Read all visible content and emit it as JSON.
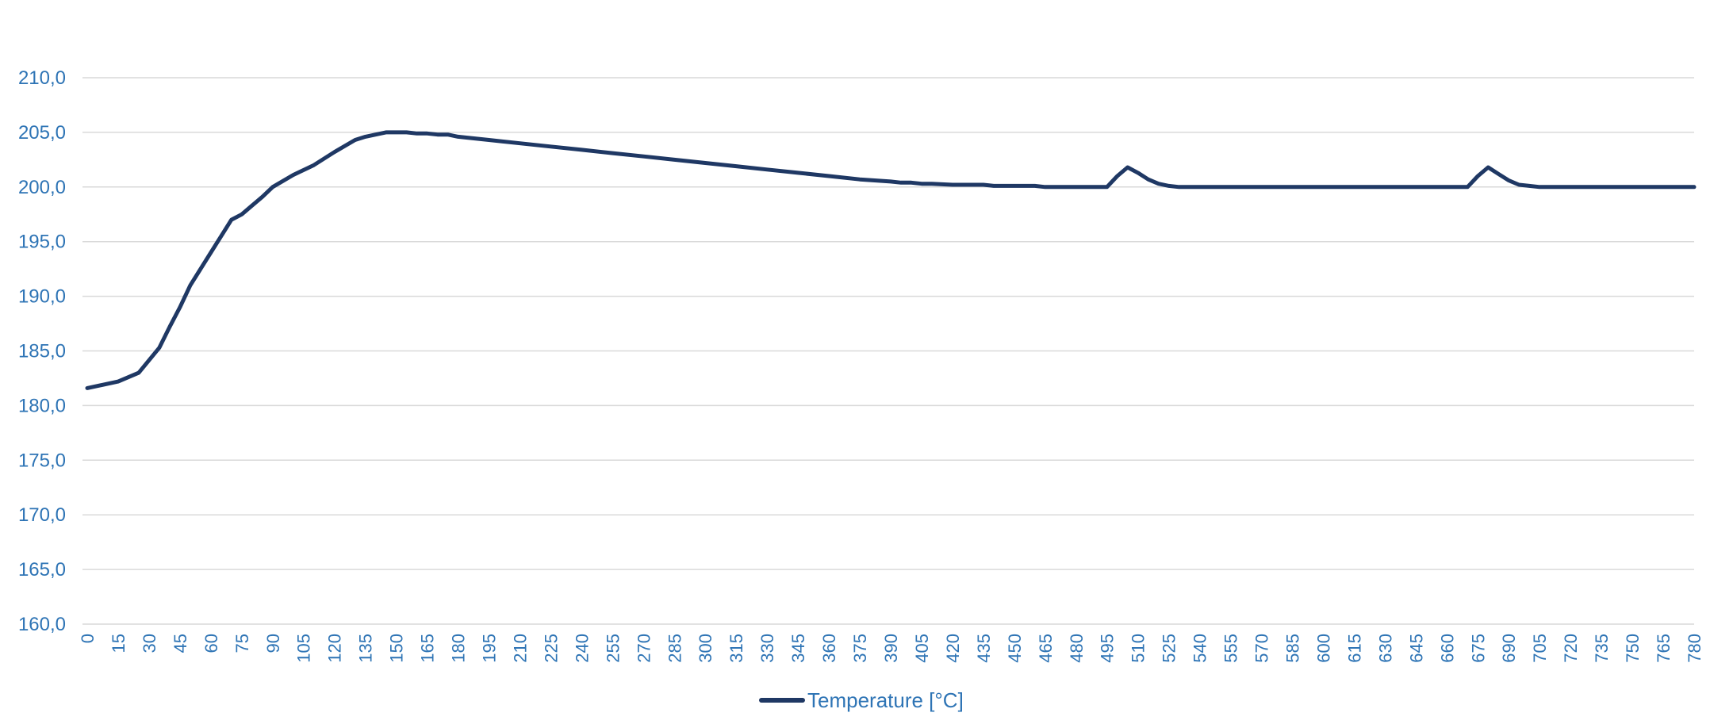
{
  "chart_data": {
    "type": "line",
    "title": "",
    "xlabel": "",
    "ylabel": "",
    "ylim": [
      160,
      210
    ],
    "yticks": [
      160,
      165,
      170,
      175,
      180,
      185,
      190,
      195,
      200,
      205,
      210
    ],
    "ytick_labels": [
      "160,0",
      "165,0",
      "170,0",
      "175,0",
      "180,0",
      "185,0",
      "190,0",
      "195,0",
      "200,0",
      "205,0",
      "210,0"
    ],
    "xlim": [
      0,
      780
    ],
    "xticks": [
      0,
      15,
      30,
      45,
      60,
      75,
      90,
      105,
      120,
      135,
      150,
      165,
      180,
      195,
      210,
      225,
      240,
      255,
      270,
      285,
      300,
      315,
      330,
      345,
      360,
      375,
      390,
      405,
      420,
      435,
      450,
      465,
      480,
      495,
      510,
      525,
      540,
      555,
      570,
      585,
      600,
      615,
      630,
      645,
      660,
      675,
      690,
      705,
      720,
      735,
      750,
      765,
      780
    ],
    "grid": true,
    "legend_position": "bottom",
    "colors": {
      "series": "#1f3864",
      "axis_text": "#2e74b5",
      "grid": "#d9d9d9"
    },
    "series": [
      {
        "name": "Temperature [°C]",
        "x": [
          0,
          15,
          25,
          35,
          40,
          45,
          50,
          55,
          60,
          65,
          70,
          75,
          80,
          85,
          90,
          100,
          110,
          120,
          130,
          135,
          140,
          145,
          150,
          155,
          160,
          165,
          170,
          175,
          180,
          195,
          210,
          225,
          240,
          255,
          270,
          285,
          300,
          315,
          330,
          345,
          360,
          375,
          390,
          395,
          400,
          405,
          410,
          420,
          430,
          435,
          440,
          450,
          460,
          465,
          470,
          480,
          490,
          495,
          500,
          505,
          510,
          515,
          520,
          525,
          530,
          540,
          560,
          600,
          660,
          670,
          675,
          680,
          685,
          690,
          695,
          700,
          705,
          710,
          750,
          780
        ],
        "y": [
          181.6,
          182.2,
          183.0,
          185.3,
          187.2,
          189.0,
          191.0,
          192.5,
          194.0,
          195.5,
          197.0,
          197.5,
          198.3,
          199.1,
          200.0,
          201.1,
          202.0,
          203.2,
          204.3,
          204.6,
          204.8,
          205.0,
          205.0,
          205.0,
          204.9,
          204.9,
          204.8,
          204.8,
          204.6,
          204.3,
          204.0,
          203.7,
          203.4,
          203.1,
          202.8,
          202.5,
          202.2,
          201.9,
          201.6,
          201.3,
          201.0,
          200.7,
          200.5,
          200.4,
          200.4,
          200.3,
          200.3,
          200.2,
          200.2,
          200.2,
          200.1,
          200.1,
          200.1,
          200.0,
          200.0,
          200.0,
          200.0,
          200.0,
          201.0,
          201.8,
          201.3,
          200.7,
          200.3,
          200.1,
          200.0,
          200.0,
          200.0,
          200.0,
          200.0,
          200.0,
          201.0,
          201.8,
          201.2,
          200.6,
          200.2,
          200.1,
          200.0,
          200.0,
          200.0,
          200.0
        ]
      }
    ]
  }
}
